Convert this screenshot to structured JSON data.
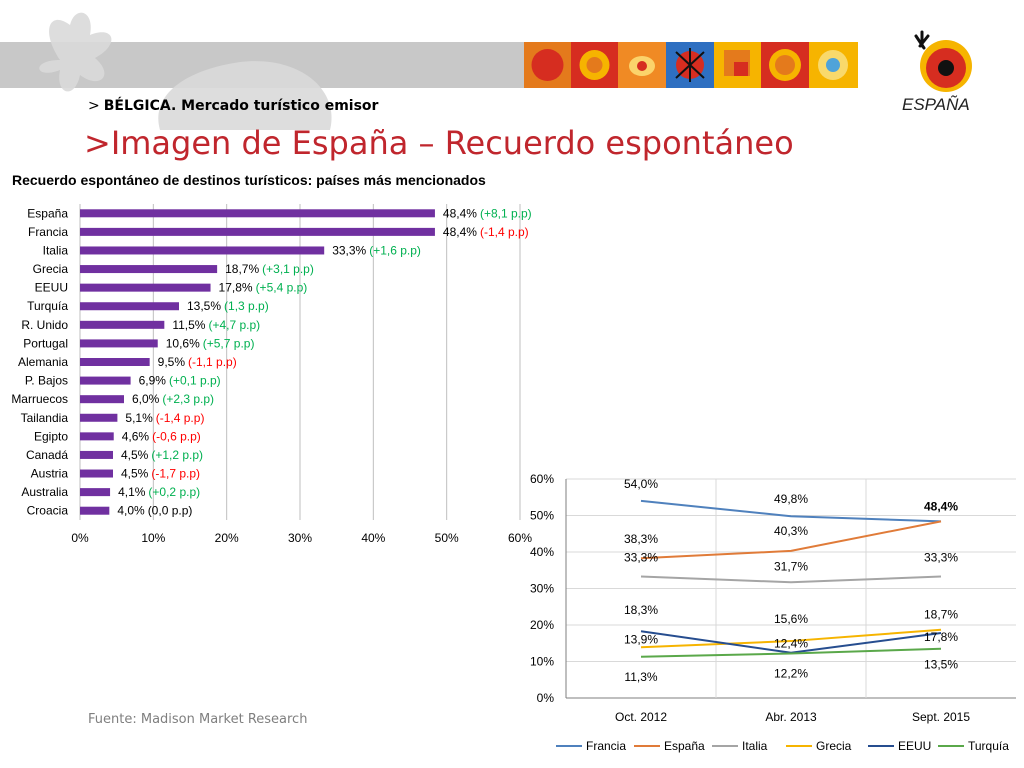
{
  "header": {
    "breadcrumb_prefix": ">",
    "breadcrumb": "BÉLGICA. Mercado turístico emisor",
    "title": ">Imagen de España – Recuerdo espontáneo"
  },
  "logo": {
    "text": "ESPAÑA"
  },
  "source": "Fuente: Madison Market Research",
  "colors": {
    "title_red": "#c0262d",
    "bar_purple": "#7030a0",
    "delta_green": "#00b050",
    "delta_red": "#ff0000",
    "band_grey": "#c8c8c8"
  },
  "chart_data": [
    {
      "type": "bar",
      "orientation": "horizontal",
      "title": "Recuerdo espontáneo de destinos turísticos: países más mencionados",
      "categories": [
        "España",
        "Francia",
        "Italia",
        "Grecia",
        "EEUU",
        "Turquía",
        "R. Unido",
        "Portugal",
        "Alemania",
        "P. Bajos",
        "Marruecos",
        "Tailandia",
        "Egipto",
        "Canadá",
        "Austria",
        "Australia",
        "Croacia"
      ],
      "values": [
        48.4,
        48.4,
        33.3,
        18.7,
        17.8,
        13.5,
        11.5,
        10.6,
        9.5,
        6.9,
        6.0,
        5.1,
        4.6,
        4.5,
        4.5,
        4.1,
        4.0
      ],
      "value_labels": [
        "48,4%",
        "48,4%",
        "33,3%",
        "18,7%",
        "17,8%",
        "13,5%",
        "11,5%",
        "10,6%",
        "9,5%",
        "6,9%",
        "6,0%",
        "5,1%",
        "4,6%",
        "4,5%",
        "4,5%",
        "4,1%",
        "4,0%"
      ],
      "deltas": [
        "(+8,1 p.p)",
        "(-1,4 p.p)",
        "(+1,6 p.p)",
        "(+3,1 p.p)",
        "(+5,4 p.p)",
        "(1,3 p.p)",
        "(+4,7 p.p)",
        "(+5,7 p.p)",
        "(-1,1 p.p)",
        "(+0,1 p.p)",
        "(+2,3 p.p)",
        "(-1,4 p.p)",
        "(-0,6 p.p)",
        "(+1,2 p.p)",
        "(-1,7 p.p)",
        "(+0,2 p.p)",
        "(0,0 p.p)"
      ],
      "delta_signs": [
        "pos",
        "neg",
        "pos",
        "pos",
        "pos",
        "pos",
        "pos",
        "pos",
        "neg",
        "pos",
        "pos",
        "neg",
        "neg",
        "pos",
        "neg",
        "pos",
        "zero"
      ],
      "xlim": [
        0,
        60
      ],
      "xticks": [
        "0%",
        "10%",
        "20%",
        "30%",
        "40%",
        "50%",
        "60%"
      ],
      "grid": true,
      "color": "#7030a0"
    },
    {
      "type": "line",
      "categories": [
        "Oct. 2012",
        "Abr. 2013",
        "Sept. 2015"
      ],
      "ylim": [
        0,
        60
      ],
      "yticks": [
        "0%",
        "10%",
        "20%",
        "30%",
        "40%",
        "50%",
        "60%"
      ],
      "grid": true,
      "legend": "bottom",
      "series": [
        {
          "name": "Francia",
          "color": "#4f81bd",
          "values": [
            54.0,
            49.8,
            48.4
          ],
          "labels": [
            "54,0%",
            "49,8%",
            "48,4%"
          ]
        },
        {
          "name": "España",
          "color": "#e07b39",
          "values": [
            38.3,
            40.3,
            48.4
          ],
          "labels": [
            "38,3%",
            "40,3%",
            ""
          ]
        },
        {
          "name": "Italia",
          "color": "#a5a5a5",
          "values": [
            33.3,
            31.7,
            33.3
          ],
          "labels": [
            "33,3%",
            "31,7%",
            "33,3%"
          ]
        },
        {
          "name": "Grecia",
          "color": "#f6b400",
          "values": [
            13.9,
            15.6,
            18.7
          ],
          "labels": [
            "13,9%",
            "15,6%",
            "18,7%"
          ]
        },
        {
          "name": "EEUU",
          "color": "#264d8f",
          "values": [
            18.3,
            12.4,
            17.8
          ],
          "labels": [
            "18,3%",
            "12,4%",
            "17,8%"
          ]
        },
        {
          "name": "Turquía",
          "color": "#5aa84a",
          "values": [
            11.3,
            12.2,
            13.5
          ],
          "labels": [
            "11,3%",
            "12,2%",
            "13,5%"
          ]
        }
      ]
    }
  ]
}
